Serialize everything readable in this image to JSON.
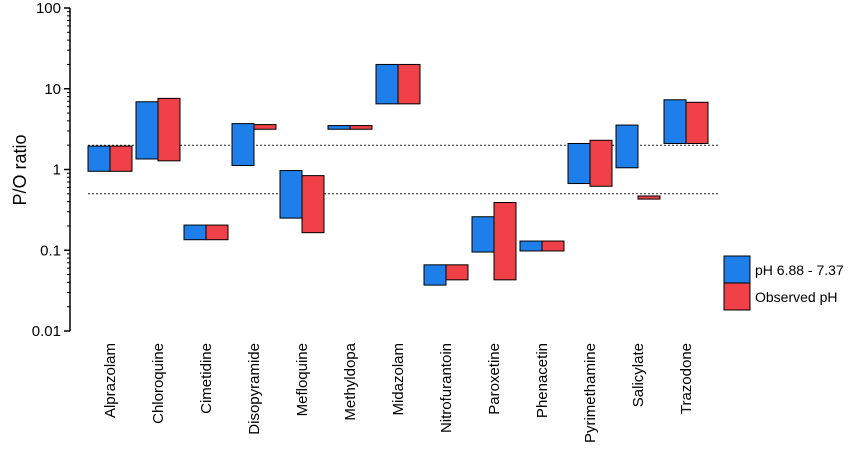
{
  "chart_data": {
    "type": "floating-bar",
    "title": "",
    "xlabel": "",
    "ylabel": "P/O ratio",
    "yscale": "log",
    "ylim": [
      0.01,
      100
    ],
    "yticks": [
      0.01,
      0.1,
      1,
      10,
      100
    ],
    "ytick_labels": [
      "0.01",
      "0.1",
      "1",
      "10",
      "100"
    ],
    "reference_lines": [
      2,
      0.5
    ],
    "categories": [
      "Alprazolam",
      "Chloroquine",
      "Cimetidine",
      "Disopyramide",
      "Mefloquine",
      "Methyldopa",
      "Midazolam",
      "Nitrofurantoin",
      "Paroxetine",
      "Phenacetin",
      "Pyrimethamine",
      "Salicylate",
      "Trazodone"
    ],
    "series": [
      {
        "name": "pH 6.88 - 7.37",
        "color": "#1E7FEA",
        "ranges": [
          [
            0.95,
            1.95
          ],
          [
            1.35,
            6.9
          ],
          [
            0.135,
            0.205
          ],
          [
            1.12,
            3.7
          ],
          [
            0.25,
            0.97
          ],
          [
            3.15,
            3.5
          ],
          [
            6.5,
            20
          ],
          [
            0.037,
            0.066
          ],
          [
            0.095,
            0.26
          ],
          [
            0.098,
            0.13
          ],
          [
            0.67,
            2.1
          ],
          [
            1.05,
            3.55
          ],
          [
            2.1,
            7.3
          ]
        ]
      },
      {
        "name": "Observed pH",
        "color": "#F04048",
        "ranges": [
          [
            0.95,
            1.95
          ],
          [
            1.28,
            7.6
          ],
          [
            0.135,
            0.205
          ],
          [
            3.15,
            3.6
          ],
          [
            0.165,
            0.84
          ],
          [
            3.15,
            3.5
          ],
          [
            6.5,
            20
          ],
          [
            0.043,
            0.066
          ],
          [
            0.043,
            0.39
          ],
          [
            0.098,
            0.13
          ],
          [
            0.62,
            2.3
          ],
          [
            0.43,
            0.47
          ],
          [
            2.1,
            6.8
          ]
        ]
      }
    ],
    "legend": "right"
  }
}
